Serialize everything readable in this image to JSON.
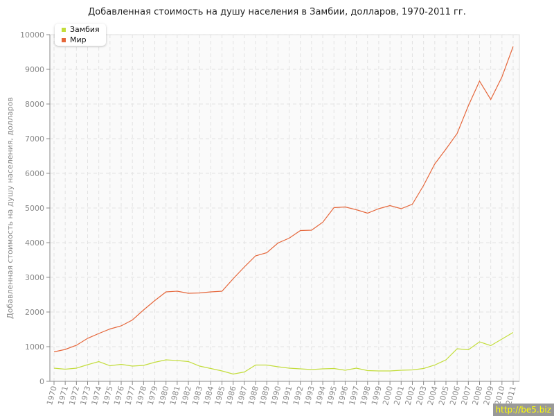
{
  "chart_data": {
    "type": "line",
    "title": "Добавленная стоимость на душу населения в Замбии, долларов, 1970-2011 гг.",
    "xlabel": "",
    "ylabel": "Добавленная стоимость на душу населения, долларов",
    "ylim": [
      0,
      10000
    ],
    "yticks": [
      0,
      1000,
      2000,
      3000,
      4000,
      5000,
      6000,
      7000,
      8000,
      9000,
      10000
    ],
    "grid": true,
    "legend_position": "top-left",
    "x": [
      1970,
      1971,
      1972,
      1973,
      1974,
      1975,
      1976,
      1977,
      1978,
      1979,
      1980,
      1981,
      1982,
      1983,
      1984,
      1985,
      1986,
      1987,
      1988,
      1989,
      1990,
      1991,
      1992,
      1993,
      1994,
      1995,
      1996,
      1997,
      1998,
      1999,
      2000,
      2001,
      2002,
      2003,
      2004,
      2005,
      2006,
      2007,
      2008,
      2009,
      2010,
      2011
    ],
    "series": [
      {
        "name": "Замбия",
        "color": "#c3dd3b",
        "values": [
          380,
          350,
          380,
          480,
          570,
          450,
          490,
          440,
          460,
          550,
          620,
          600,
          570,
          440,
          370,
          300,
          210,
          270,
          470,
          470,
          420,
          380,
          360,
          340,
          360,
          370,
          320,
          380,
          310,
          300,
          300,
          320,
          330,
          370,
          470,
          620,
          940,
          910,
          1140,
          1030,
          1220,
          1410
        ]
      },
      {
        "name": "Мир",
        "color": "#e5663a",
        "values": [
          850,
          920,
          1040,
          1240,
          1380,
          1510,
          1600,
          1770,
          2060,
          2330,
          2580,
          2600,
          2540,
          2550,
          2580,
          2600,
          2960,
          3300,
          3620,
          3710,
          3990,
          4130,
          4350,
          4360,
          4590,
          5010,
          5030,
          4950,
          4850,
          4980,
          5070,
          4980,
          5110,
          5650,
          6270,
          6700,
          7150,
          7950,
          8660,
          8130,
          8780,
          9660
        ]
      }
    ]
  },
  "watermark": "http://be5.biz"
}
